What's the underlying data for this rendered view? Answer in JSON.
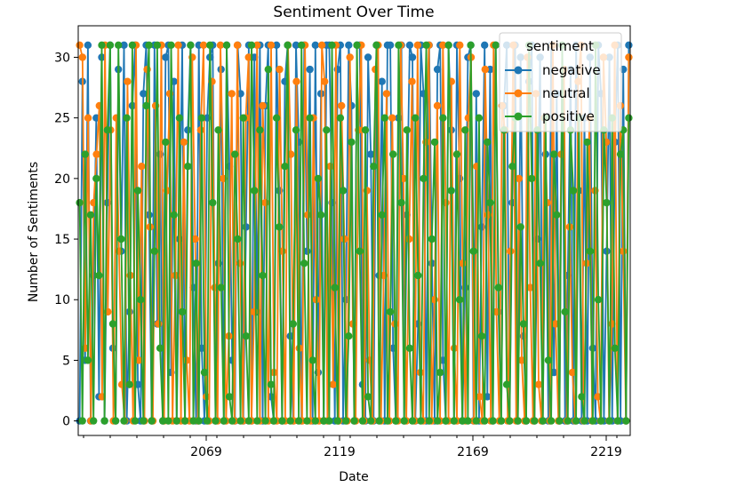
{
  "chart_data": {
    "type": "line",
    "title": "Sentiment Over Time",
    "xlabel": "Date",
    "ylabel": "Number of Sentiments",
    "xlim": [
      2021,
      2228
    ],
    "ylim": [
      -1.2,
      32.6
    ],
    "xticks": [
      2069,
      2119,
      2169,
      2219
    ],
    "yticks": [
      0,
      5,
      10,
      15,
      20,
      25,
      30
    ],
    "marker": "circle",
    "legend": {
      "title": "sentiment",
      "position": "top-right"
    },
    "series": [
      {
        "name": "negative",
        "color": "#1f77b4",
        "values": [
          0,
          28,
          5,
          31,
          0,
          12,
          25,
          2,
          30,
          0,
          18,
          31,
          6,
          0,
          29,
          14,
          31,
          0,
          9,
          26,
          31,
          3,
          0,
          27,
          31,
          17,
          0,
          31,
          8,
          22,
          0,
          30,
          31,
          4,
          28,
          0,
          15,
          31,
          0,
          24,
          31,
          11,
          0,
          31,
          6,
          0,
          25,
          30,
          31,
          0,
          13,
          29,
          0,
          31,
          21,
          5,
          0,
          31,
          27,
          0,
          16,
          31,
          0,
          30,
          9,
          31,
          0,
          26,
          31,
          2,
          0,
          31,
          19,
          0,
          28,
          31,
          7,
          0,
          31,
          23,
          0,
          31,
          14,
          29,
          0,
          31,
          4,
          27,
          0,
          31,
          31,
          18,
          0,
          29,
          31,
          0,
          10,
          31,
          26,
          0,
          31,
          31,
          3,
          0,
          30,
          22,
          0,
          31,
          12,
          28,
          0,
          31,
          31,
          6,
          0,
          25,
          31,
          0,
          17,
          31,
          30,
          0,
          8,
          31,
          27,
          0,
          31,
          13,
          0,
          29,
          31,
          5,
          0,
          31,
          24,
          0,
          31,
          20,
          0,
          11,
          30,
          31,
          0,
          27,
          0,
          16,
          31,
          2,
          29,
          0,
          31,
          9,
          0,
          26,
          31,
          0,
          18,
          31,
          0,
          30,
          7,
          0,
          28,
          31,
          0,
          15,
          30,
          0,
          22,
          0,
          31,
          4,
          27,
          0,
          31,
          0,
          12,
          29,
          0,
          31,
          19,
          0,
          25,
          0,
          30,
          6,
          0,
          31,
          27,
          0,
          14,
          30,
          0,
          23,
          31,
          0,
          29,
          0,
          31
        ]
      },
      {
        "name": "neutral",
        "color": "#ff7f0e",
        "values": [
          31,
          30,
          6,
          25,
          0,
          18,
          22,
          26,
          2,
          31,
          9,
          24,
          0,
          25,
          14,
          3,
          0,
          28,
          12,
          0,
          31,
          5,
          21,
          0,
          29,
          16,
          0,
          26,
          8,
          31,
          0,
          19,
          27,
          0,
          12,
          31,
          0,
          23,
          5,
          0,
          30,
          15,
          0,
          24,
          31,
          2,
          0,
          28,
          11,
          0,
          31,
          20,
          0,
          7,
          27,
          0,
          31,
          13,
          0,
          25,
          30,
          0,
          9,
          31,
          0,
          26,
          18,
          0,
          31,
          4,
          0,
          29,
          14,
          0,
          31,
          22,
          0,
          28,
          6,
          0,
          31,
          17,
          0,
          25,
          10,
          0,
          31,
          28,
          0,
          21,
          3,
          31,
          0,
          26,
          15,
          0,
          30,
          8,
          0,
          24,
          31,
          0,
          19,
          5,
          0,
          29,
          31,
          0,
          12,
          27,
          0,
          25,
          8,
          0,
          31,
          20,
          0,
          15,
          28,
          0,
          31,
          4,
          0,
          23,
          31,
          0,
          10,
          26,
          0,
          31,
          18,
          0,
          28,
          6,
          0,
          31,
          13,
          0,
          25,
          30,
          0,
          21,
          2,
          0,
          29,
          17,
          0,
          31,
          9,
          0,
          26,
          24,
          0,
          14,
          31,
          0,
          20,
          5,
          0,
          30,
          11,
          0,
          27,
          3,
          0,
          25,
          18,
          0,
          31,
          8,
          0,
          22,
          29,
          0,
          16,
          4,
          0,
          28,
          31,
          0,
          13,
          25,
          0,
          19,
          2,
          0,
          30,
          23,
          0,
          8,
          31,
          0,
          26,
          14,
          0,
          30
        ]
      },
      {
        "name": "positive",
        "color": "#2ca02c",
        "values": [
          18,
          0,
          22,
          5,
          17,
          0,
          20,
          12,
          31,
          0,
          24,
          31,
          8,
          0,
          31,
          15,
          0,
          25,
          3,
          31,
          0,
          19,
          10,
          0,
          26,
          31,
          0,
          14,
          31,
          6,
          0,
          23,
          0,
          31,
          17,
          0,
          25,
          9,
          0,
          21,
          31,
          0,
          13,
          0,
          25,
          4,
          0,
          31,
          18,
          0,
          24,
          11,
          0,
          31,
          2,
          0,
          22,
          15,
          0,
          25,
          7,
          0,
          31,
          19,
          0,
          24,
          12,
          0,
          29,
          3,
          0,
          25,
          16,
          0,
          21,
          31,
          0,
          8,
          24,
          0,
          31,
          13,
          0,
          25,
          5,
          0,
          20,
          17,
          0,
          24,
          0,
          31,
          11,
          0,
          25,
          19,
          0,
          7,
          23,
          0,
          31,
          14,
          0,
          24,
          2,
          0,
          21,
          31,
          0,
          17,
          25,
          0,
          9,
          22,
          0,
          31,
          18,
          0,
          24,
          6,
          0,
          25,
          12,
          0,
          20,
          31,
          0,
          15,
          23,
          0,
          4,
          25,
          0,
          31,
          19,
          0,
          22,
          10,
          0,
          24,
          0,
          31,
          14,
          0,
          25,
          7,
          0,
          23,
          18,
          0,
          31,
          11,
          0,
          24,
          3,
          0,
          21,
          25,
          0,
          16,
          8,
          0,
          31,
          20,
          0,
          24,
          13,
          0,
          25,
          5,
          0,
          22,
          17,
          0,
          31,
          9,
          0,
          24,
          19,
          0,
          25,
          2,
          0,
          23,
          14,
          0,
          31,
          10,
          0,
          24,
          18,
          0,
          25,
          6,
          0,
          22,
          24,
          0,
          25
        ]
      }
    ]
  }
}
